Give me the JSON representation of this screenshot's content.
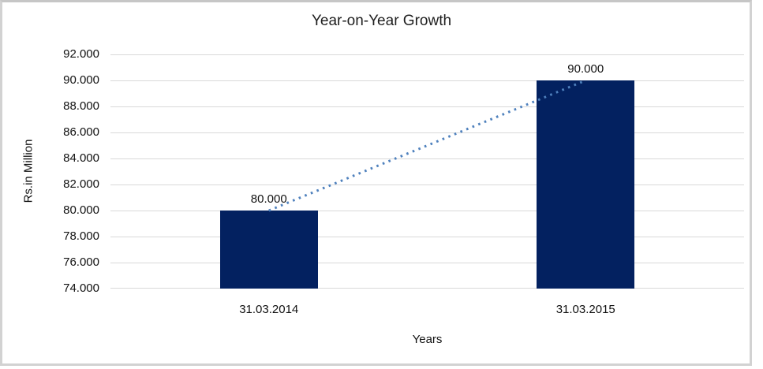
{
  "window": {
    "background_color": "#FFFFFF",
    "frame_border_color": "#D2D2D2"
  },
  "chart_data": {
    "type": "bar",
    "title": "Year-on-Year Growth",
    "xlabel": "Years",
    "ylabel": "Rs.in Million",
    "categories": [
      "31.03.2014",
      "31.03.2015"
    ],
    "values": [
      80,
      90
    ],
    "data_labels": [
      "80.000",
      "90.000"
    ],
    "ylim": [
      74,
      92
    ],
    "y_tick_step": 2,
    "y_tick_labels": [
      "92.000",
      "90.000",
      "88.000",
      "86.000",
      "84.000",
      "82.000",
      "80.000",
      "78.000",
      "76.000",
      "74.000"
    ],
    "grid": true,
    "legend": "none",
    "bar_color": "#032160",
    "gridline_color": "#D9D9D9",
    "text_color": "#111111",
    "trendline": {
      "type": "linear",
      "style": "dotted",
      "color": "#4F81BD",
      "points": [
        [
          0,
          80
        ],
        [
          1,
          90
        ]
      ]
    }
  }
}
